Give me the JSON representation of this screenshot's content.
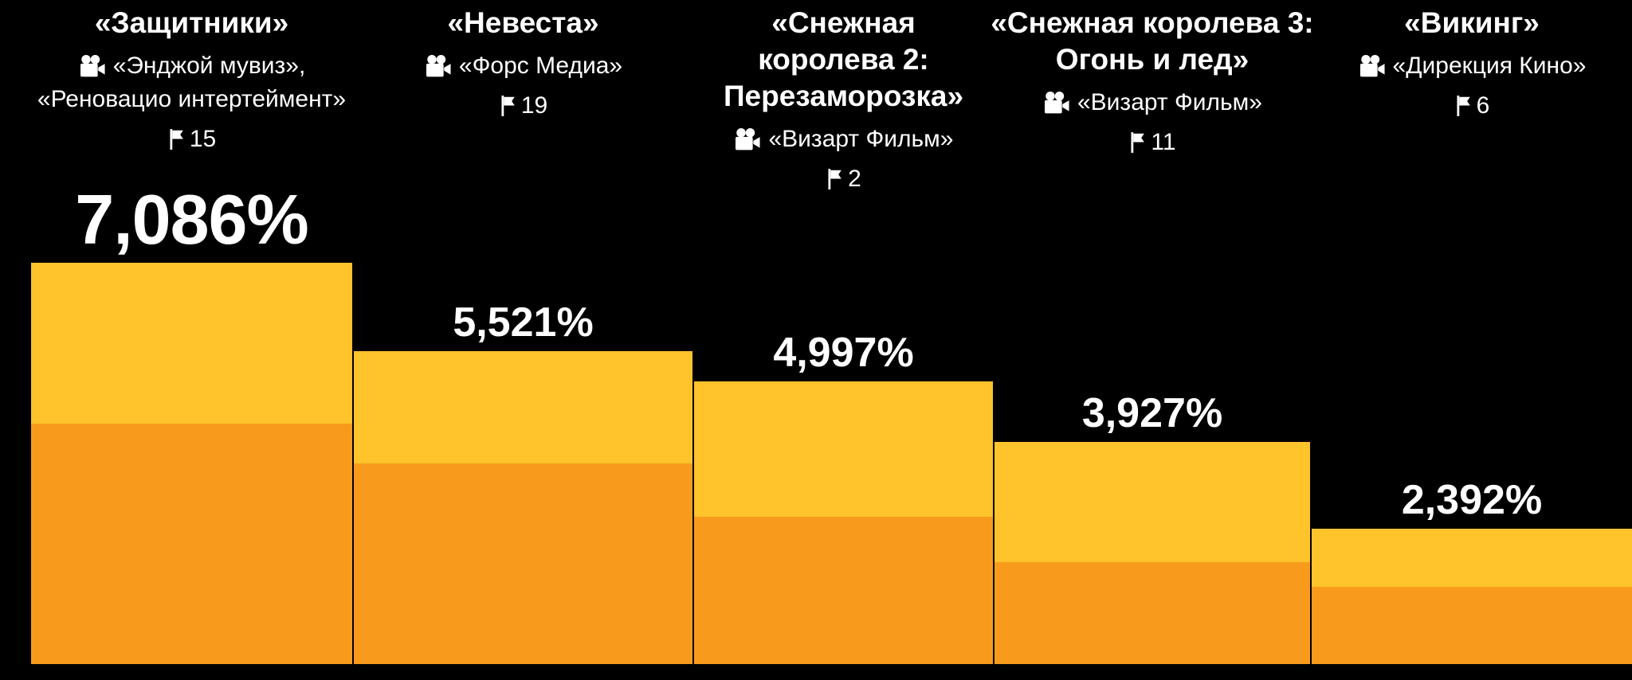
{
  "chart_data": {
    "type": "bar",
    "title": "",
    "ylabel": "",
    "xlabel": "",
    "unit": "%",
    "ylim": [
      0,
      7.5
    ],
    "grid": false,
    "legend": "none",
    "background_color": "#000000",
    "text_color": "#FFFFFF",
    "bar_colors": {
      "top_segment": "#FFC32B",
      "bottom_segment": "#F89B1C"
    },
    "movies": [
      {
        "title_lines": [
          "«Защитники»"
        ],
        "studio_lines": [
          "«Энджой мувиз»,",
          "«Реновацио интертеймент»"
        ],
        "flag_count": "15",
        "value_label": "7,086%",
        "value": 7.086,
        "top_segment_fraction": 0.4
      },
      {
        "title_lines": [
          "«Невеста»"
        ],
        "studio_lines": [
          "«Форс Медиа»"
        ],
        "flag_count": "19",
        "value_label": "5,521%",
        "value": 5.521,
        "top_segment_fraction": 0.36
      },
      {
        "title_lines": [
          "«Снежная",
          "королева 2:",
          "Перезаморозка»"
        ],
        "studio_lines": [
          "«Визарт Фильм»"
        ],
        "flag_count": "2",
        "value_label": "4,997%",
        "value": 4.997,
        "top_segment_fraction": 0.48
      },
      {
        "title_lines": [
          "«Снежная королева 3:",
          "Огонь и лед»"
        ],
        "studio_lines": [
          "«Визарт Фильм»"
        ],
        "flag_count": "11",
        "value_label": "3,927%",
        "value": 3.927,
        "top_segment_fraction": 0.54
      },
      {
        "title_lines": [
          "«Викинг»"
        ],
        "studio_lines": [
          "«Дирекция Кино»"
        ],
        "flag_count": "6",
        "value_label": "2,392%",
        "value": 2.392,
        "top_segment_fraction": 0.43
      }
    ]
  }
}
